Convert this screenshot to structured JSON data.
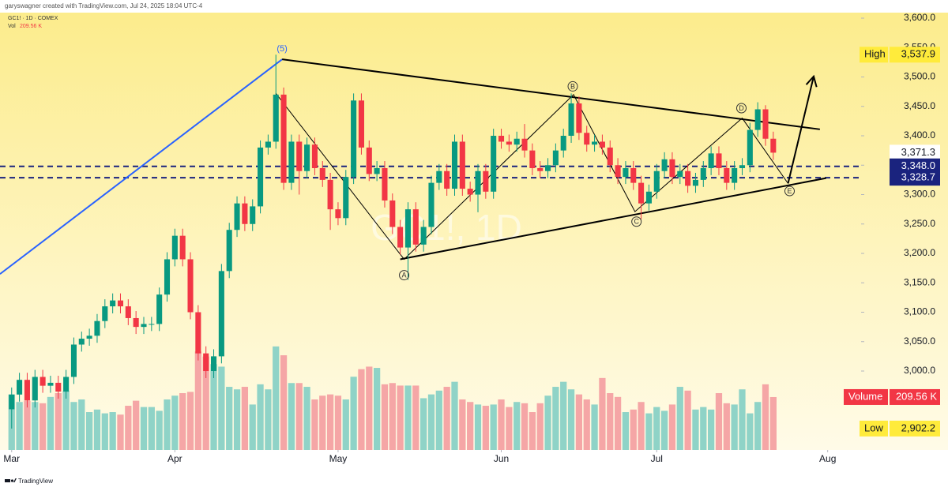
{
  "header": {
    "credit": "garyswagner created with TradingView.com, Jul 24, 2025 18:04 UTC-4",
    "symbol": "GC1! · 1D · COMEX",
    "vol_label": "Vol"
  },
  "watermark": "GC1!, 1D",
  "footer": "TradingView",
  "chart_data": {
    "type": "candlestick",
    "ylim": [
      2865.8,
      3609.4
    ],
    "yticks": [
      {
        "value": 3000,
        "label": "3,000.0"
      },
      {
        "value": 3050,
        "label": "3,050.0"
      },
      {
        "value": 3100,
        "label": "3,100.0"
      },
      {
        "value": 3150,
        "label": "3,150.0"
      },
      {
        "value": 3200,
        "label": "3,200.0"
      },
      {
        "value": 3250,
        "label": "3,250.0"
      },
      {
        "value": 3300,
        "label": "3,300.0"
      },
      {
        "value": 3350,
        "label": "3,350.0"
      },
      {
        "value": 3400,
        "label": "3,400.0"
      },
      {
        "value": 3450,
        "label": "3,450.0"
      },
      {
        "value": 3500,
        "label": "3,500.0"
      },
      {
        "value": 3550,
        "label": "3,550.0"
      },
      {
        "value": 3600,
        "label": "3,600.0"
      }
    ],
    "xlim": [
      -1.5,
      109.3
    ],
    "xticks": [
      {
        "value": 0,
        "label": "Mar"
      },
      {
        "value": 21,
        "label": "Apr"
      },
      {
        "value": 42,
        "label": "May"
      },
      {
        "value": 63,
        "label": "Jun"
      },
      {
        "value": 83,
        "label": "Jul"
      },
      {
        "value": 105,
        "label": "Aug"
      }
    ],
    "grid": false,
    "up_color": "#089981",
    "down_color": "#f23645",
    "open": [
      2935,
      2960,
      2985,
      2950,
      2990,
      2975,
      2980,
      2965,
      2990,
      3045,
      3055,
      3060,
      3085,
      3110,
      3120,
      3110,
      3090,
      3075,
      3080,
      3080,
      3130,
      3190,
      3230,
      3190,
      3100,
      3030,
      3000,
      3025,
      3170,
      3240,
      3285,
      3250,
      3280,
      3380,
      3390,
      3470,
      3320,
      3390,
      3340,
      3385,
      3345,
      3325,
      3275,
      3260,
      3330,
      3460,
      3380,
      3335,
      3345,
      3290,
      3245,
      3210,
      3275,
      3215,
      3245,
      3320,
      3340,
      3310,
      3390,
      3310,
      3300,
      3340,
      3305,
      3400,
      3390,
      3385,
      3395,
      3375,
      3345,
      3340,
      3350,
      3375,
      3400,
      3455,
      3405,
      3385,
      3390,
      3380,
      3350,
      3330,
      3345,
      3320,
      3285,
      3305,
      3340,
      3360,
      3330,
      3340,
      3315,
      3325,
      3345,
      3370,
      3345,
      3320,
      3345,
      3350,
      3410,
      3445,
      3395
    ],
    "high": [
      2972,
      2997,
      2997,
      3002,
      3002,
      2992,
      2992,
      3002,
      3057,
      3067,
      3072,
      3097,
      3122,
      3132,
      3132,
      3122,
      3102,
      3092,
      3092,
      3142,
      3202,
      3242,
      3242,
      3202,
      3112,
      3042,
      3037,
      3182,
      3252,
      3297,
      3297,
      3292,
      3392,
      3402,
      3537.9,
      3482,
      3402,
      3402,
      3397,
      3397,
      3357,
      3337,
      3287,
      3342,
      3472,
      3472,
      3392,
      3357,
      3357,
      3302,
      3257,
      3287,
      3287,
      3257,
      3332,
      3352,
      3352,
      3402,
      3402,
      3322,
      3352,
      3352,
      3412,
      3412,
      3402,
      3407,
      3420,
      3387,
      3357,
      3362,
      3387,
      3412,
      3472,
      3467,
      3417,
      3402,
      3402,
      3392,
      3362,
      3357,
      3357,
      3332,
      3317,
      3352,
      3372,
      3372,
      3352,
      3352,
      3337,
      3357,
      3382,
      3382,
      3357,
      3357,
      3362,
      3422,
      3457,
      3452,
      3407
    ],
    "low": [
      2902.2,
      2948,
      2938,
      2938,
      2963,
      2963,
      2953,
      2953,
      2978,
      3033,
      3043,
      3048,
      3073,
      3098,
      3098,
      3078,
      3063,
      3063,
      3068,
      3068,
      3118,
      3178,
      3178,
      3088,
      3018,
      2988,
      2988,
      3013,
      3158,
      3228,
      3238,
      3238,
      3268,
      3368,
      3378,
      3308,
      3308,
      3300,
      3328,
      3333,
      3313,
      3240,
      3248,
      3248,
      3318,
      3368,
      3323,
      3323,
      3278,
      3233,
      3198,
      3155,
      3203,
      3203,
      3233,
      3308,
      3298,
      3298,
      3298,
      3288,
      3270,
      3293,
      3293,
      3378,
      3373,
      3373,
      3363,
      3333,
      3328,
      3328,
      3338,
      3363,
      3388,
      3393,
      3373,
      3373,
      3368,
      3338,
      3318,
      3318,
      3308,
      3258,
      3273,
      3293,
      3328,
      3318,
      3318,
      3303,
      3303,
      3313,
      3333,
      3333,
      3308,
      3308,
      3333,
      3338,
      3398,
      3383,
      3359
    ],
    "close": [
      2960,
      2985,
      2950,
      2990,
      2975,
      2980,
      2965,
      2990,
      3045,
      3055,
      3060,
      3085,
      3110,
      3120,
      3110,
      3090,
      3075,
      3080,
      3080,
      3130,
      3190,
      3230,
      3190,
      3100,
      3030,
      3000,
      3025,
      3170,
      3240,
      3285,
      3250,
      3280,
      3380,
      3390,
      3470,
      3320,
      3390,
      3340,
      3385,
      3345,
      3325,
      3275,
      3260,
      3330,
      3460,
      3380,
      3335,
      3345,
      3290,
      3245,
      3210,
      3275,
      3215,
      3245,
      3320,
      3340,
      3310,
      3390,
      3310,
      3300,
      3340,
      3305,
      3400,
      3390,
      3385,
      3395,
      3375,
      3345,
      3340,
      3350,
      3375,
      3400,
      3455,
      3405,
      3385,
      3390,
      3380,
      3350,
      3330,
      3345,
      3320,
      3285,
      3305,
      3340,
      3360,
      3330,
      3340,
      3315,
      3325,
      3345,
      3370,
      3345,
      3320,
      3345,
      3350,
      3410,
      3445,
      3395,
      3371.3
    ],
    "volume": {
      "name": "Volume",
      "value_label": "209.56 K",
      "ylim": [
        0,
        1732000
      ],
      "up_color": "#8fd3c7",
      "down_color": "#f5a6a6",
      "label_color": "#f23645",
      "values": [
        220000,
        190000,
        195000,
        190000,
        185000,
        210000,
        225000,
        235000,
        190000,
        200000,
        150000,
        160000,
        145000,
        150000,
        140000,
        175000,
        195000,
        170000,
        170000,
        155000,
        200000,
        215000,
        225000,
        230000,
        390000,
        370000,
        340000,
        330000,
        250000,
        240000,
        250000,
        180000,
        260000,
        240000,
        410000,
        375000,
        265000,
        265000,
        250000,
        200000,
        215000,
        220000,
        215000,
        200000,
        290000,
        320000,
        330000,
        325000,
        260000,
        265000,
        255000,
        255000,
        255000,
        205000,
        220000,
        235000,
        250000,
        270000,
        200000,
        190000,
        180000,
        175000,
        180000,
        200000,
        170000,
        190000,
        185000,
        150000,
        185000,
        215000,
        250000,
        270000,
        240000,
        220000,
        200000,
        180000,
        285000,
        225000,
        210000,
        150000,
        160000,
        190000,
        145000,
        170000,
        155000,
        180000,
        250000,
        235000,
        160000,
        170000,
        160000,
        225000,
        185000,
        180000,
        240000,
        145000,
        190000,
        260000,
        209560
      ]
    },
    "price_labels": [
      {
        "name": "High",
        "value": 3537.9,
        "label": "3,537.9",
        "color": "#ffeb3b"
      },
      {
        "name": "Low",
        "value": 2902.2,
        "label": "2,902.2",
        "color": "#ffeb3b"
      },
      {
        "value": 3371.3,
        "label": "3,371.3",
        "color": "#ffffff"
      }
    ],
    "hlines": [
      {
        "value": 3348.0,
        "label": "3,348.0",
        "color": "#1a237e"
      },
      {
        "value": 3328.7,
        "label": "3,328.7",
        "color": "#1a237e"
      }
    ],
    "drawings": [
      {
        "kind": "line",
        "color": "#2962ff",
        "x": [
          -1.5,
          34.8
        ],
        "y": [
          3165,
          3530
        ]
      },
      {
        "kind": "line",
        "color": "#000000",
        "x": [
          34.8,
          104
        ],
        "y": [
          3530,
          3411
        ]
      },
      {
        "kind": "line",
        "color": "#000000",
        "x": [
          50,
          104.8
        ],
        "y": [
          3190,
          3328
        ]
      },
      {
        "kind": "zigzag",
        "color": "#000000",
        "x": [
          34,
          50.5,
          72.3,
          80.2,
          94,
          99.9
        ],
        "y": [
          3472,
          3190,
          3470,
          3271,
          3430,
          3319
        ]
      },
      {
        "kind": "arrow",
        "color": "#000000",
        "x": [
          99.9,
          103.2
        ],
        "y": [
          3319,
          3501
        ]
      }
    ],
    "annotations": [
      {
        "text": "(5)",
        "x": 34.8,
        "y": 3548,
        "circled": false,
        "color": "#2962ff"
      },
      {
        "text": "A",
        "x": 50.5,
        "y": 3163,
        "circled": true,
        "color": "#333333"
      },
      {
        "text": "B",
        "x": 72.2,
        "y": 3484,
        "circled": true,
        "color": "#333333"
      },
      {
        "text": "C",
        "x": 80.4,
        "y": 3254,
        "circled": true,
        "color": "#333333"
      },
      {
        "text": "D",
        "x": 93.9,
        "y": 3447,
        "circled": true,
        "color": "#333333"
      },
      {
        "text": "E",
        "x": 100.1,
        "y": 3306,
        "circled": true,
        "color": "#333333"
      }
    ]
  }
}
